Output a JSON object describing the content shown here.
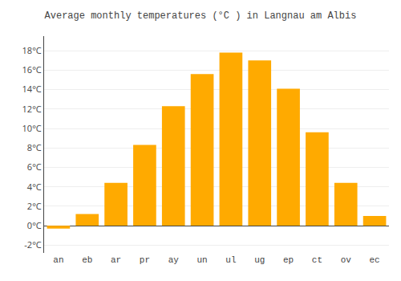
{
  "chart_data": {
    "type": "bar",
    "title": "Average monthly temperatures (°C ) in Langnau am Albis",
    "categories": [
      "an",
      "eb",
      "ar",
      "pr",
      "ay",
      "un",
      "ul",
      "ug",
      "ep",
      "ct",
      "ov",
      "ec"
    ],
    "values": [
      -0.3,
      1.2,
      4.4,
      8.3,
      12.3,
      15.6,
      17.8,
      17.0,
      14.1,
      9.6,
      4.4,
      1.0
    ],
    "color": "#FFAA00",
    "ylim": [
      -2.8,
      19.5
    ],
    "yticks": [
      {
        "value": -2,
        "label": "-2°C"
      },
      {
        "value": 0,
        "label": "0°C"
      },
      {
        "value": 2,
        "label": "2°C"
      },
      {
        "value": 4,
        "label": "4°C"
      },
      {
        "value": 6,
        "label": "6°C"
      },
      {
        "value": 8,
        "label": "8°C"
      },
      {
        "value": 10,
        "label": "10°C"
      },
      {
        "value": 12,
        "label": "12°C"
      },
      {
        "value": 14,
        "label": "14°C"
      },
      {
        "value": 16,
        "label": "16°C"
      },
      {
        "value": 18,
        "label": "18°C"
      }
    ],
    "grid": true
  }
}
